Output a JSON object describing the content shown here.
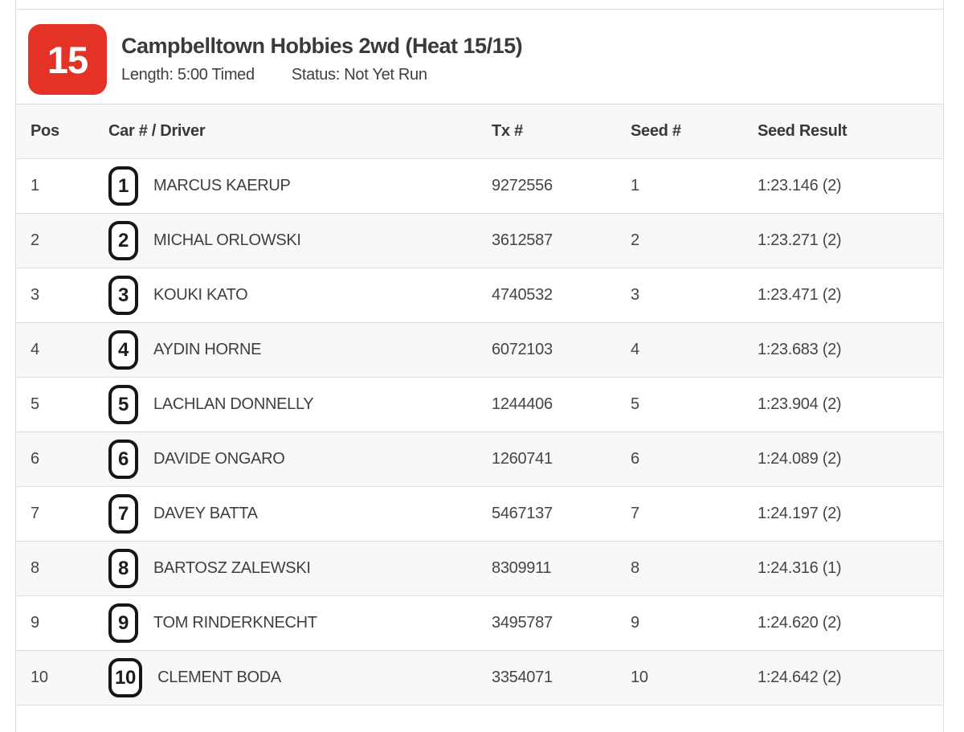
{
  "colors": {
    "accent_red": "#e43326",
    "border": "#dddddd",
    "row_stripe": "#f8f8f8"
  },
  "heat": {
    "number": "15",
    "title": "Campbelltown Hobbies 2wd (Heat 15/15)",
    "length": "Length: 5:00 Timed",
    "status": "Status: Not Yet Run"
  },
  "table": {
    "columns": [
      "Pos",
      "Car # / Driver",
      "Tx #",
      "Seed #",
      "Seed Result"
    ],
    "rows": [
      {
        "pos": "1",
        "car": "1",
        "driver": "MARCUS KAERUP",
        "tx": "9272556",
        "seed": "1",
        "result": "1:23.146 (2)"
      },
      {
        "pos": "2",
        "car": "2",
        "driver": "MICHAL ORLOWSKI",
        "tx": "3612587",
        "seed": "2",
        "result": "1:23.271 (2)"
      },
      {
        "pos": "3",
        "car": "3",
        "driver": "KOUKI KATO",
        "tx": "4740532",
        "seed": "3",
        "result": "1:23.471 (2)"
      },
      {
        "pos": "4",
        "car": "4",
        "driver": "AYDIN HORNE",
        "tx": "6072103",
        "seed": "4",
        "result": "1:23.683 (2)"
      },
      {
        "pos": "5",
        "car": "5",
        "driver": "LACHLAN DONNELLY",
        "tx": "1244406",
        "seed": "5",
        "result": "1:23.904 (2)"
      },
      {
        "pos": "6",
        "car": "6",
        "driver": "DAVIDE ONGARO",
        "tx": "1260741",
        "seed": "6",
        "result": "1:24.089 (2)"
      },
      {
        "pos": "7",
        "car": "7",
        "driver": "DAVEY BATTA",
        "tx": "5467137",
        "seed": "7",
        "result": "1:24.197 (2)"
      },
      {
        "pos": "8",
        "car": "8",
        "driver": "BARTOSZ ZALEWSKI",
        "tx": "8309911",
        "seed": "8",
        "result": "1:24.316 (1)"
      },
      {
        "pos": "9",
        "car": "9",
        "driver": "TOM RINDERKNECHT",
        "tx": "3495787",
        "seed": "9",
        "result": "1:24.620 (2)"
      },
      {
        "pos": "10",
        "car": "10",
        "driver": "CLEMENT BODA",
        "tx": "3354071",
        "seed": "10",
        "result": "1:24.642 (2)"
      }
    ]
  }
}
